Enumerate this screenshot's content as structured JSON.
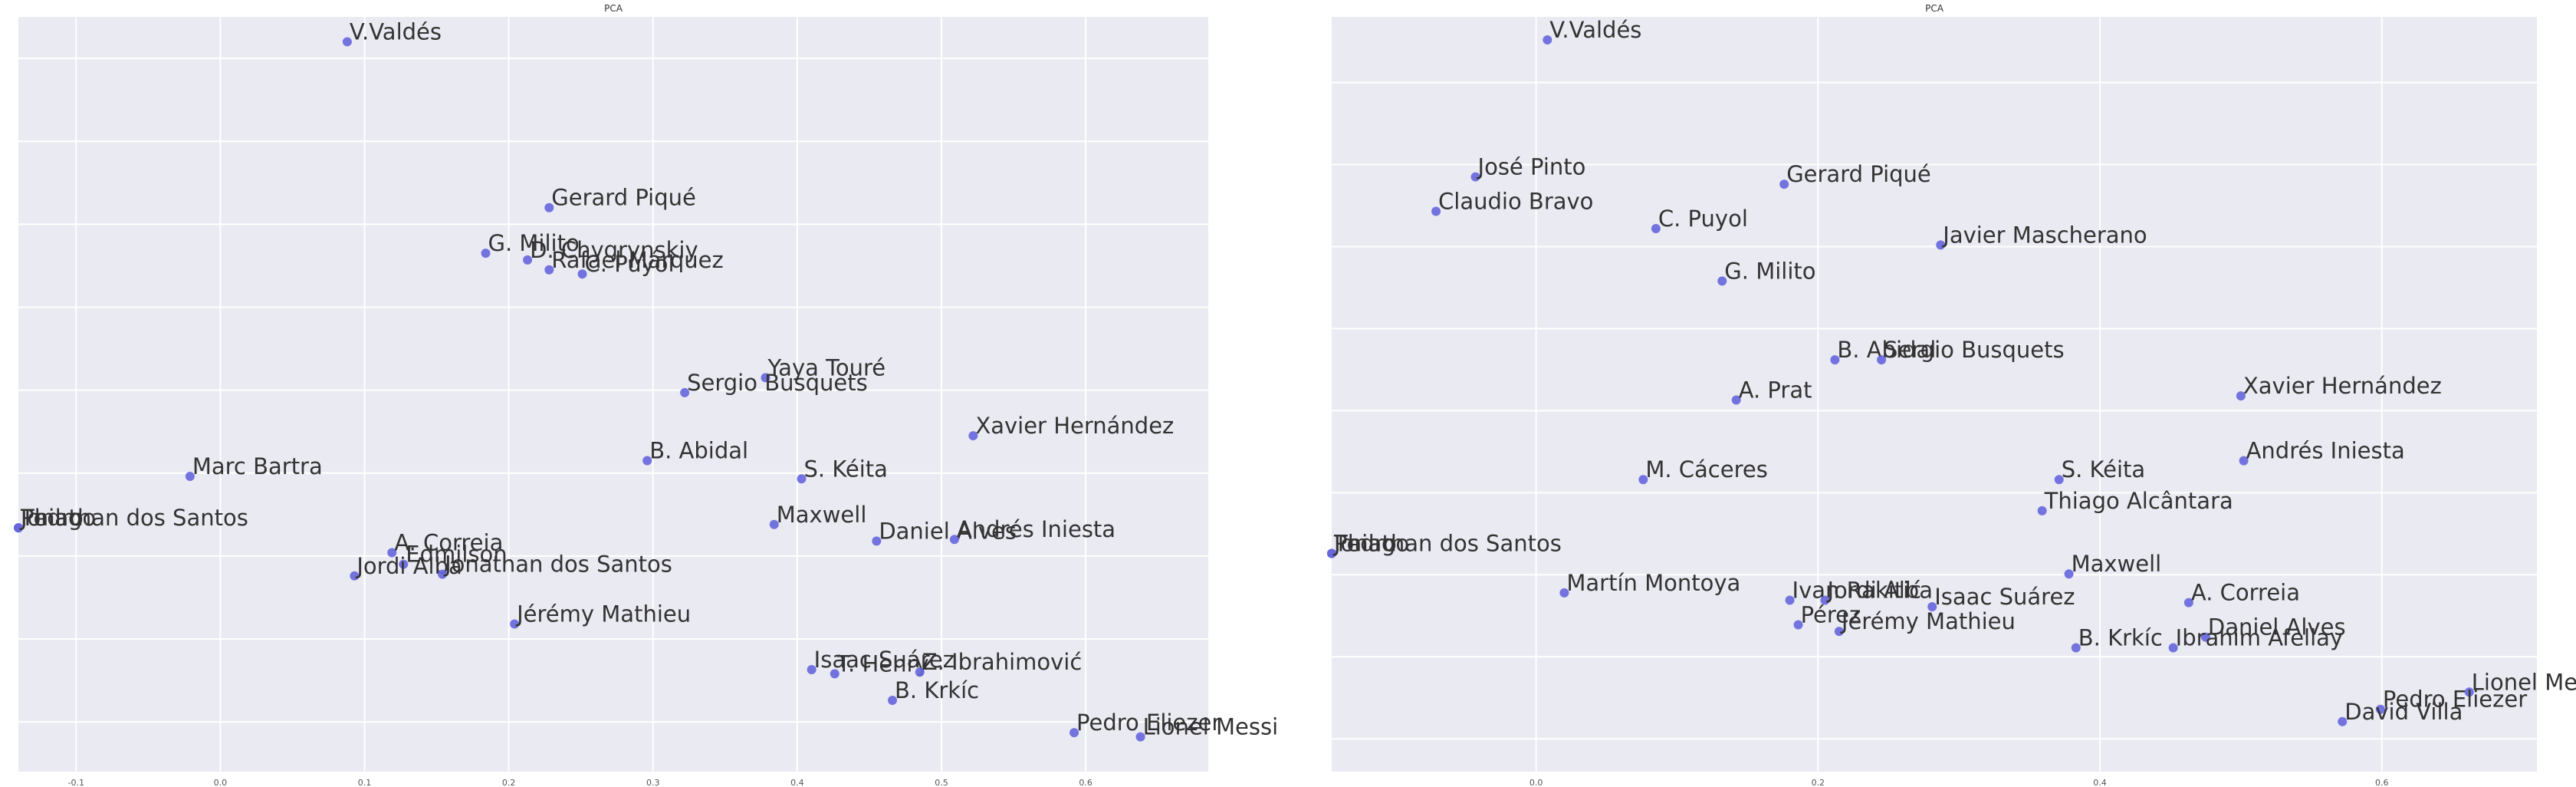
{
  "chart_data": [
    {
      "type": "scatter",
      "title": "PCA",
      "xlim": [
        -0.14,
        0.685
      ],
      "ylim": [
        -0.36,
        0.55
      ],
      "xticks": [
        -0.1,
        0.0,
        0.1,
        0.2,
        0.3,
        0.4,
        0.5,
        0.6
      ],
      "tick_labels": [
        "-0.1",
        "0.0",
        "0.1",
        "0.2",
        "0.3",
        "0.4",
        "0.5",
        "0.6"
      ],
      "grid": true,
      "points": [
        {
          "label": "V.Valdés",
          "x": 0.088,
          "y": 0.52
        },
        {
          "label": "Gerard Piqué",
          "x": 0.228,
          "y": 0.32
        },
        {
          "label": "G. Milito",
          "x": 0.184,
          "y": 0.265
        },
        {
          "label": "D. Chygrynskiy",
          "x": 0.213,
          "y": 0.257
        },
        {
          "label": "Rafael Márquez",
          "x": 0.228,
          "y": 0.245
        },
        {
          "label": "C. Puyol",
          "x": 0.251,
          "y": 0.24
        },
        {
          "label": "Yaya Touré",
          "x": 0.378,
          "y": 0.115
        },
        {
          "label": "Sergio Busquets",
          "x": 0.322,
          "y": 0.097
        },
        {
          "label": "Xavier Hernández",
          "x": 0.522,
          "y": 0.045
        },
        {
          "label": "B. Abidal",
          "x": 0.296,
          "y": 0.015
        },
        {
          "label": "S. Kéita",
          "x": 0.403,
          "y": -0.007
        },
        {
          "label": "Marc Bartra",
          "x": -0.021,
          "y": -0.004
        },
        {
          "label": "Maxwell",
          "x": 0.384,
          "y": -0.062
        },
        {
          "label": "Daniel Alves",
          "x": 0.455,
          "y": -0.082
        },
        {
          "label": "Andrés Iniesta",
          "x": 0.509,
          "y": -0.08
        },
        {
          "label": "Pedro",
          "x": -0.14,
          "y": -0.066
        },
        {
          "label": "Thiago",
          "x": -0.14,
          "y": -0.066
        },
        {
          "label": "Jonathan dos Santos",
          "x": -0.14,
          "y": -0.066
        },
        {
          "label": "A. Correia",
          "x": 0.119,
          "y": -0.096
        },
        {
          "label": "Edmilson",
          "x": 0.127,
          "y": -0.11
        },
        {
          "label": "Jordi Alba",
          "x": 0.093,
          "y": -0.124
        },
        {
          "label": "Jonathan dos Santos",
          "x": 0.154,
          "y": -0.122
        },
        {
          "label": "Jérémy Mathieu",
          "x": 0.204,
          "y": -0.182
        },
        {
          "label": "Isaac Suárez",
          "x": 0.41,
          "y": -0.237
        },
        {
          "label": "T. Henry",
          "x": 0.426,
          "y": -0.242
        },
        {
          "label": "Z. Ibrahimović",
          "x": 0.485,
          "y": -0.24
        },
        {
          "label": "B. Krkíc",
          "x": 0.466,
          "y": -0.274
        },
        {
          "label": "Pedro Eliezer",
          "x": 0.592,
          "y": -0.313
        },
        {
          "label": "Lionel Messi",
          "x": 0.638,
          "y": -0.318
        }
      ]
    },
    {
      "type": "scatter",
      "title": "PCA",
      "xlim": [
        -0.145,
        0.71
      ],
      "ylim": [
        -0.34,
        0.58
      ],
      "xticks": [
        0.0,
        0.2,
        0.4,
        0.6
      ],
      "tick_labels": [
        "0.0",
        "0.2",
        "0.4",
        "0.6"
      ],
      "grid": true,
      "points": [
        {
          "label": "V.Valdés",
          "x": 0.008,
          "y": 0.552
        },
        {
          "label": "José Pinto",
          "x": -0.043,
          "y": 0.385
        },
        {
          "label": "Gerard Piqué",
          "x": 0.176,
          "y": 0.376
        },
        {
          "label": "Claudio Bravo",
          "x": -0.071,
          "y": 0.343
        },
        {
          "label": "C. Puyol",
          "x": 0.085,
          "y": 0.322
        },
        {
          "label": "Javier Mascherano",
          "x": 0.287,
          "y": 0.302
        },
        {
          "label": "G. Milito",
          "x": 0.132,
          "y": 0.258
        },
        {
          "label": "B. Abidal",
          "x": 0.212,
          "y": 0.162
        },
        {
          "label": "Sergio Busquets",
          "x": 0.245,
          "y": 0.162
        },
        {
          "label": "Xavier Hernández",
          "x": 0.5,
          "y": 0.118
        },
        {
          "label": "A. Prat",
          "x": 0.142,
          "y": 0.113
        },
        {
          "label": "Andrés Iniesta",
          "x": 0.502,
          "y": 0.039
        },
        {
          "label": "M. Cáceres",
          "x": 0.076,
          "y": 0.016
        },
        {
          "label": "S. Kéita",
          "x": 0.371,
          "y": 0.016
        },
        {
          "label": "Thiago Alcântara",
          "x": 0.359,
          "y": -0.022
        },
        {
          "label": "Pedro",
          "x": -0.145,
          "y": -0.074
        },
        {
          "label": "Thiago",
          "x": -0.145,
          "y": -0.074
        },
        {
          "label": "Jonathan dos Santos",
          "x": -0.145,
          "y": -0.074
        },
        {
          "label": "Maxwell",
          "x": 0.378,
          "y": -0.099
        },
        {
          "label": "Martín Montoya",
          "x": 0.02,
          "y": -0.122
        },
        {
          "label": "Ivan Rakitić",
          "x": 0.18,
          "y": -0.131
        },
        {
          "label": "Jordi Alba",
          "x": 0.205,
          "y": -0.131
        },
        {
          "label": "Isaac Suárez",
          "x": 0.281,
          "y": -0.139
        },
        {
          "label": "A. Correia",
          "x": 0.463,
          "y": -0.134
        },
        {
          "label": "Pérez",
          "x": 0.186,
          "y": -0.161
        },
        {
          "label": "Jérémy Mathieu",
          "x": 0.215,
          "y": -0.169
        },
        {
          "label": "Daniel Alves",
          "x": 0.475,
          "y": -0.176
        },
        {
          "label": "B. Krkíc",
          "x": 0.383,
          "y": -0.189
        },
        {
          "label": "Ibrahim Afellay",
          "x": 0.452,
          "y": -0.189
        },
        {
          "label": "Lionel Messi",
          "x": 0.662,
          "y": -0.243
        },
        {
          "label": "Pedro Eliezer",
          "x": 0.599,
          "y": -0.264
        },
        {
          "label": "David Villa",
          "x": 0.572,
          "y": -0.279
        }
      ]
    }
  ]
}
